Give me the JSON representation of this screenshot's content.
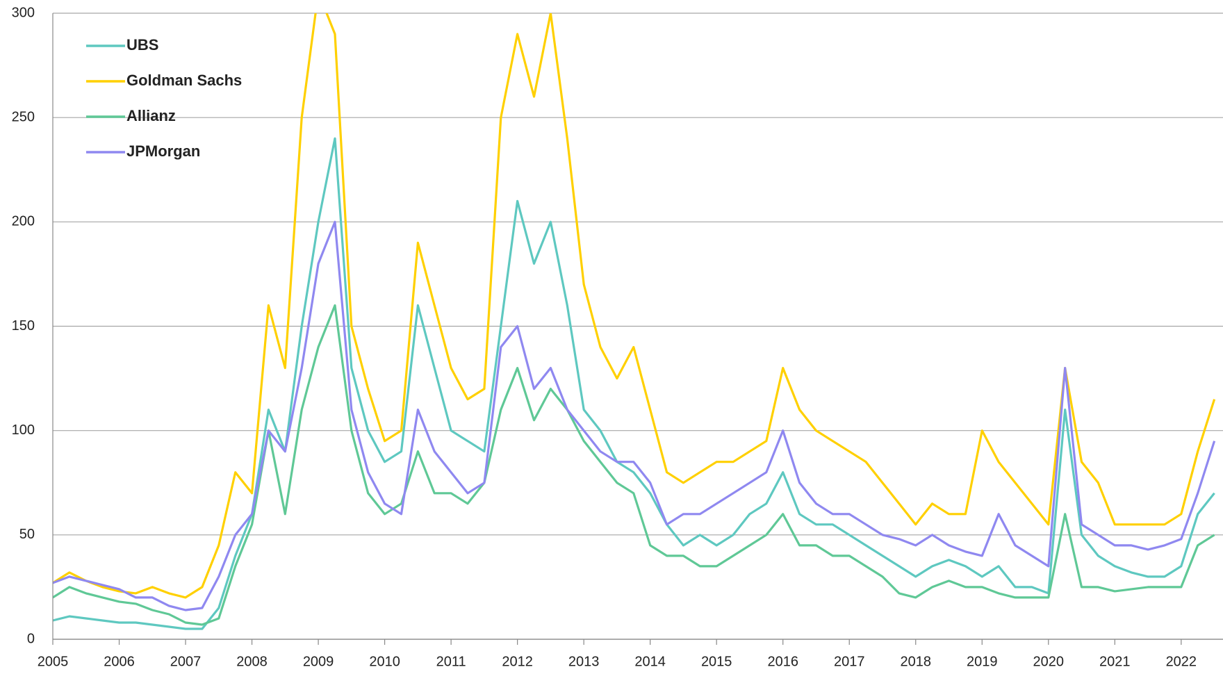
{
  "chart_data": {
    "type": "line",
    "x": [
      2005,
      2005.25,
      2005.5,
      2005.75,
      2006,
      2006.25,
      2006.5,
      2006.75,
      2007,
      2007.25,
      2007.5,
      2007.75,
      2008,
      2008.25,
      2008.5,
      2008.75,
      2009,
      2009.25,
      2009.5,
      2009.75,
      2010,
      2010.25,
      2010.5,
      2010.75,
      2011,
      2011.25,
      2011.5,
      2011.75,
      2012,
      2012.25,
      2012.5,
      2012.75,
      2013,
      2013.25,
      2013.5,
      2013.75,
      2014,
      2014.25,
      2014.5,
      2014.75,
      2015,
      2015.25,
      2015.5,
      2015.75,
      2016,
      2016.25,
      2016.5,
      2016.75,
      2017,
      2017.25,
      2017.5,
      2017.75,
      2018,
      2018.25,
      2018.5,
      2018.75,
      2019,
      2019.25,
      2019.5,
      2019.75,
      2020,
      2020.25,
      2020.5,
      2020.75,
      2021,
      2021.25,
      2021.5,
      2021.75,
      2022,
      2022.25,
      2022.5
    ],
    "series": [
      {
        "name": "UBS",
        "color": "#5ec8c0",
        "values": [
          9,
          11,
          10,
          9,
          8,
          8,
          7,
          6,
          5,
          5,
          15,
          40,
          60,
          110,
          90,
          150,
          200,
          240,
          130,
          100,
          85,
          90,
          160,
          130,
          100,
          95,
          90,
          150,
          210,
          180,
          200,
          160,
          110,
          100,
          85,
          80,
          70,
          55,
          45,
          50,
          45,
          50,
          60,
          65,
          80,
          60,
          55,
          55,
          50,
          45,
          40,
          35,
          30,
          35,
          38,
          35,
          30,
          35,
          25,
          25,
          22,
          110,
          50,
          40,
          35,
          32,
          30,
          30,
          35,
          60,
          70
        ]
      },
      {
        "name": "Goldman Sachs",
        "color": "#ffd000",
        "values": [
          27,
          32,
          28,
          25,
          23,
          22,
          25,
          22,
          20,
          25,
          45,
          80,
          70,
          160,
          130,
          250,
          310,
          290,
          150,
          120,
          95,
          100,
          190,
          160,
          130,
          115,
          120,
          250,
          290,
          260,
          300,
          240,
          170,
          140,
          125,
          140,
          110,
          80,
          75,
          80,
          85,
          85,
          90,
          95,
          130,
          110,
          100,
          95,
          90,
          85,
          75,
          65,
          55,
          65,
          60,
          60,
          100,
          85,
          75,
          65,
          55,
          130,
          85,
          75,
          55,
          55,
          55,
          55,
          60,
          90,
          115
        ]
      },
      {
        "name": "Allianz",
        "color": "#5fc896",
        "values": [
          20,
          25,
          22,
          20,
          18,
          17,
          14,
          12,
          8,
          7,
          10,
          35,
          55,
          100,
          60,
          110,
          140,
          160,
          100,
          70,
          60,
          65,
          90,
          70,
          70,
          65,
          75,
          110,
          130,
          105,
          120,
          110,
          95,
          85,
          75,
          70,
          45,
          40,
          40,
          35,
          35,
          40,
          45,
          50,
          60,
          45,
          45,
          40,
          40,
          35,
          30,
          22,
          20,
          25,
          28,
          25,
          25,
          22,
          20,
          20,
          20,
          60,
          25,
          25,
          23,
          24,
          25,
          25,
          25,
          45,
          50
        ]
      },
      {
        "name": "JPMorgan",
        "color": "#8f88f0",
        "values": [
          27,
          30,
          28,
          26,
          24,
          20,
          20,
          16,
          14,
          15,
          30,
          50,
          60,
          100,
          90,
          130,
          180,
          200,
          110,
          80,
          65,
          60,
          110,
          90,
          80,
          70,
          75,
          140,
          150,
          120,
          130,
          110,
          100,
          90,
          85,
          85,
          75,
          55,
          60,
          60,
          65,
          70,
          75,
          80,
          100,
          75,
          65,
          60,
          60,
          55,
          50,
          48,
          45,
          50,
          45,
          42,
          40,
          60,
          45,
          40,
          35,
          130,
          55,
          50,
          45,
          45,
          43,
          45,
          48,
          70,
          95
        ]
      }
    ],
    "xlim": [
      2005,
      2022.63
    ],
    "xticks": [
      2005,
      2006,
      2007,
      2008,
      2009,
      2010,
      2011,
      2012,
      2013,
      2014,
      2015,
      2016,
      2017,
      2018,
      2019,
      2020,
      2021,
      2022
    ],
    "ylim": [
      0,
      300
    ],
    "yticks": [
      0,
      50,
      100,
      150,
      200,
      250,
      300
    ],
    "grid": true,
    "legend": "upper-left"
  }
}
